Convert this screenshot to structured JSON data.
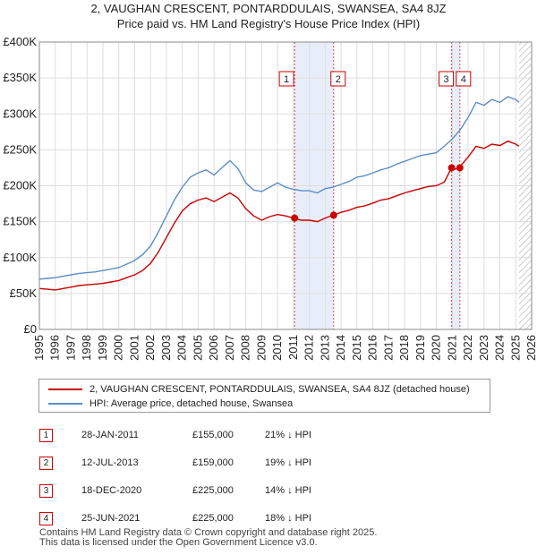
{
  "chart_data": {
    "type": "line",
    "title": "2, VAUGHAN CRESCENT, PONTARDDULAIS, SWANSEA, SA4 8JZ",
    "subtitle": "Price paid vs. HM Land Registry's House Price Index (HPI)",
    "xlim": [
      1995,
      2026
    ],
    "ylim": [
      0,
      400000
    ],
    "x_ticks": [
      "1995",
      "1996",
      "1997",
      "1998",
      "1999",
      "2000",
      "2001",
      "2002",
      "2003",
      "2004",
      "2005",
      "2006",
      "2007",
      "2008",
      "2009",
      "2010",
      "2011",
      "2012",
      "2013",
      "2014",
      "2015",
      "2016",
      "2017",
      "2018",
      "2019",
      "2020",
      "2021",
      "2022",
      "2023",
      "2024",
      "2025",
      "2026"
    ],
    "y_ticks": [
      {
        "value": 0,
        "label": "£0"
      },
      {
        "value": 50000,
        "label": "£50K"
      },
      {
        "value": 100000,
        "label": "£100K"
      },
      {
        "value": 150000,
        "label": "£150K"
      },
      {
        "value": 200000,
        "label": "£200K"
      },
      {
        "value": 250000,
        "label": "£250K"
      },
      {
        "value": 300000,
        "label": "£300K"
      },
      {
        "value": 350000,
        "label": "£350K"
      },
      {
        "value": 400000,
        "label": "£400K"
      }
    ],
    "series": [
      {
        "name": "2, VAUGHAN CRESCENT, PONTARDDULAIS, SWANSEA, SA4 8JZ (detached house)",
        "color": "#cc0000",
        "x": [
          1995.0,
          1995.5,
          1996.0,
          1996.5,
          1997.0,
          1997.5,
          1998.0,
          1998.5,
          1999.0,
          1999.5,
          2000.0,
          2000.5,
          2001.0,
          2001.5,
          2002.0,
          2002.5,
          2003.0,
          2003.5,
          2004.0,
          2004.5,
          2005.0,
          2005.5,
          2006.0,
          2006.5,
          2007.0,
          2007.5,
          2008.0,
          2008.5,
          2009.0,
          2009.5,
          2010.0,
          2010.5,
          2011.0,
          2011.5,
          2012.0,
          2012.5,
          2013.0,
          2013.5,
          2014.0,
          2014.5,
          2015.0,
          2015.5,
          2016.0,
          2016.5,
          2017.0,
          2017.5,
          2018.0,
          2018.5,
          2019.0,
          2019.5,
          2020.0,
          2020.5,
          2020.96,
          2021.0,
          2021.48,
          2021.5,
          2022.0,
          2022.5,
          2023.0,
          2023.5,
          2024.0,
          2024.5,
          2025.0,
          2025.2
        ],
        "values": [
          57000,
          56000,
          55000,
          57000,
          59000,
          61000,
          62000,
          63000,
          64000,
          66000,
          68000,
          72000,
          76000,
          82000,
          92000,
          108000,
          128000,
          148000,
          165000,
          175000,
          180000,
          183000,
          178000,
          184000,
          190000,
          183000,
          168000,
          158000,
          152000,
          157000,
          160000,
          158000,
          155000,
          152000,
          152000,
          150000,
          155000,
          159000,
          163000,
          166000,
          170000,
          172000,
          176000,
          180000,
          182000,
          186000,
          190000,
          193000,
          196000,
          199000,
          200000,
          205000,
          225000,
          222000,
          225000,
          227000,
          240000,
          255000,
          252000,
          258000,
          256000,
          262000,
          258000,
          255000
        ]
      },
      {
        "name": "HPI: Average price, detached house, Swansea",
        "color": "#5b8ec9",
        "x": [
          1995.0,
          1995.5,
          1996.0,
          1996.5,
          1997.0,
          1997.5,
          1998.0,
          1998.5,
          1999.0,
          1999.5,
          2000.0,
          2000.5,
          2001.0,
          2001.5,
          2002.0,
          2002.5,
          2003.0,
          2003.5,
          2004.0,
          2004.5,
          2005.0,
          2005.5,
          2006.0,
          2006.5,
          2007.0,
          2007.5,
          2008.0,
          2008.5,
          2009.0,
          2009.5,
          2010.0,
          2010.5,
          2011.0,
          2011.5,
          2012.0,
          2012.5,
          2013.0,
          2013.5,
          2014.0,
          2014.5,
          2015.0,
          2015.5,
          2016.0,
          2016.5,
          2017.0,
          2017.5,
          2018.0,
          2018.5,
          2019.0,
          2019.5,
          2020.0,
          2020.5,
          2021.0,
          2021.5,
          2022.0,
          2022.5,
          2023.0,
          2023.5,
          2024.0,
          2024.5,
          2025.0,
          2025.2
        ],
        "values": [
          70000,
          71000,
          72000,
          74000,
          76000,
          78000,
          79000,
          80000,
          82000,
          84000,
          86000,
          91000,
          96000,
          104000,
          116000,
          136000,
          158000,
          180000,
          198000,
          212000,
          218000,
          222000,
          215000,
          225000,
          235000,
          224000,
          204000,
          194000,
          192000,
          198000,
          204000,
          198000,
          195000,
          193000,
          193000,
          190000,
          196000,
          198000,
          202000,
          206000,
          212000,
          214000,
          218000,
          222000,
          225000,
          230000,
          234000,
          238000,
          242000,
          244000,
          246000,
          255000,
          265000,
          278000,
          295000,
          316000,
          312000,
          320000,
          316000,
          324000,
          320000,
          316000
        ]
      }
    ],
    "shaded_periods": [
      [
        2011.07,
        2013.53
      ],
      [
        2020.96,
        2021.48
      ]
    ],
    "future_hatch_from": 2025.2,
    "markers": [
      {
        "label": "1",
        "x": 2011.07
      },
      {
        "label": "2",
        "x": 2013.53
      },
      {
        "label": "3",
        "x": 2020.96
      },
      {
        "label": "4",
        "x": 2021.48
      }
    ],
    "sales_points": [
      {
        "x": 2011.07,
        "y": 155000
      },
      {
        "x": 2013.53,
        "y": 159000
      },
      {
        "x": 2020.96,
        "y": 225000
      },
      {
        "x": 2021.48,
        "y": 225000
      }
    ],
    "legend": [
      {
        "label": "2, VAUGHAN CRESCENT, PONTARDDULAIS, SWANSEA, SA4 8JZ (detached house)",
        "color": "#cc0000"
      },
      {
        "label": "HPI: Average price, detached house, Swansea",
        "color": "#5b8ec9"
      }
    ],
    "sales_table": [
      {
        "num": "1",
        "date": "28-JAN-2011",
        "price": "£155,000",
        "hpi": "21% ↓ HPI"
      },
      {
        "num": "2",
        "date": "12-JUL-2013",
        "price": "£159,000",
        "hpi": "19% ↓ HPI"
      },
      {
        "num": "3",
        "date": "18-DEC-2020",
        "price": "£225,000",
        "hpi": "14% ↓ HPI"
      },
      {
        "num": "4",
        "date": "25-JUN-2021",
        "price": "£225,000",
        "hpi": "18% ↓ HPI"
      }
    ],
    "footer": [
      "Contains HM Land Registry data © Crown copyright and database right 2025.",
      "This data is licensed under the Open Government Licence v3.0."
    ]
  }
}
